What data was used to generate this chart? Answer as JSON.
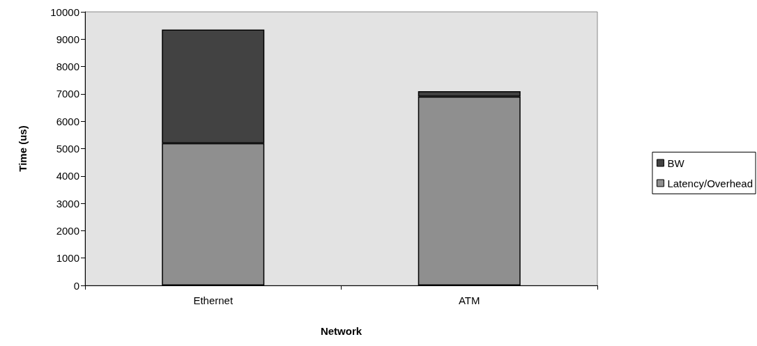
{
  "chart_data": {
    "type": "bar",
    "stacked": true,
    "xlabel": "Network",
    "ylabel": "Time (us)",
    "categories": [
      "Ethernet",
      "ATM"
    ],
    "series": [
      {
        "name": "Latency/Overhead",
        "color": "#8f8f8f",
        "values": [
          5200,
          6900
        ]
      },
      {
        "name": "BW",
        "color": "#424242",
        "values": [
          4150,
          200
        ]
      }
    ],
    "ylim": [
      0,
      10000
    ],
    "yticks": [
      0,
      1000,
      2000,
      3000,
      4000,
      5000,
      6000,
      7000,
      8000,
      9000,
      10000
    ],
    "grid": false,
    "legend": "right"
  }
}
